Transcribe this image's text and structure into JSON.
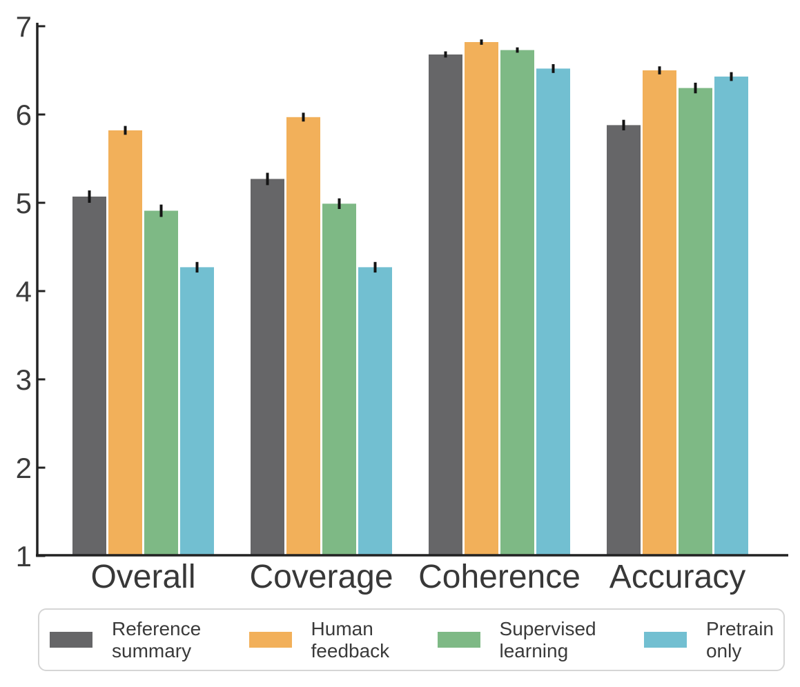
{
  "figure": {
    "background": "#ffffff"
  },
  "chart_data": {
    "type": "bar",
    "categories": [
      "Overall",
      "Coverage",
      "Coherence",
      "Accuracy"
    ],
    "series": [
      {
        "name": "Reference summary",
        "legend_lines": [
          "Reference",
          "summary"
        ],
        "color": "#666668",
        "values": [
          5.07,
          5.27,
          6.68,
          5.88
        ],
        "errors": [
          0.07,
          0.07,
          0.035,
          0.06
        ]
      },
      {
        "name": "Human feedback",
        "legend_lines": [
          "Human",
          "feedback"
        ],
        "color": "#F2B05A",
        "values": [
          5.82,
          5.97,
          6.82,
          6.5
        ],
        "errors": [
          0.05,
          0.05,
          0.03,
          0.045
        ]
      },
      {
        "name": "Supervised learning",
        "legend_lines": [
          "Supervised",
          "learning"
        ],
        "color": "#7EB985",
        "values": [
          4.91,
          4.99,
          6.73,
          6.3
        ],
        "errors": [
          0.07,
          0.06,
          0.03,
          0.06
        ]
      },
      {
        "name": "Pretrain only",
        "legend_lines": [
          "Pretrain",
          "only"
        ],
        "color": "#72BFD1",
        "values": [
          4.27,
          4.27,
          6.52,
          6.43
        ],
        "errors": [
          0.06,
          0.06,
          0.05,
          0.05
        ]
      }
    ],
    "ylim": [
      1,
      7
    ],
    "yticks": [
      "1",
      "2",
      "3",
      "4",
      "5",
      "6",
      "7"
    ],
    "grid": false,
    "error_bars": true,
    "legend_position": "bottom",
    "colors": {
      "axis": "#222222",
      "tick_label": "#3B3B3B",
      "category_label": "#383838",
      "error_bar": "#141414",
      "legend_border": "#D5D5D5",
      "legend_text": "#3A3A3A"
    }
  }
}
